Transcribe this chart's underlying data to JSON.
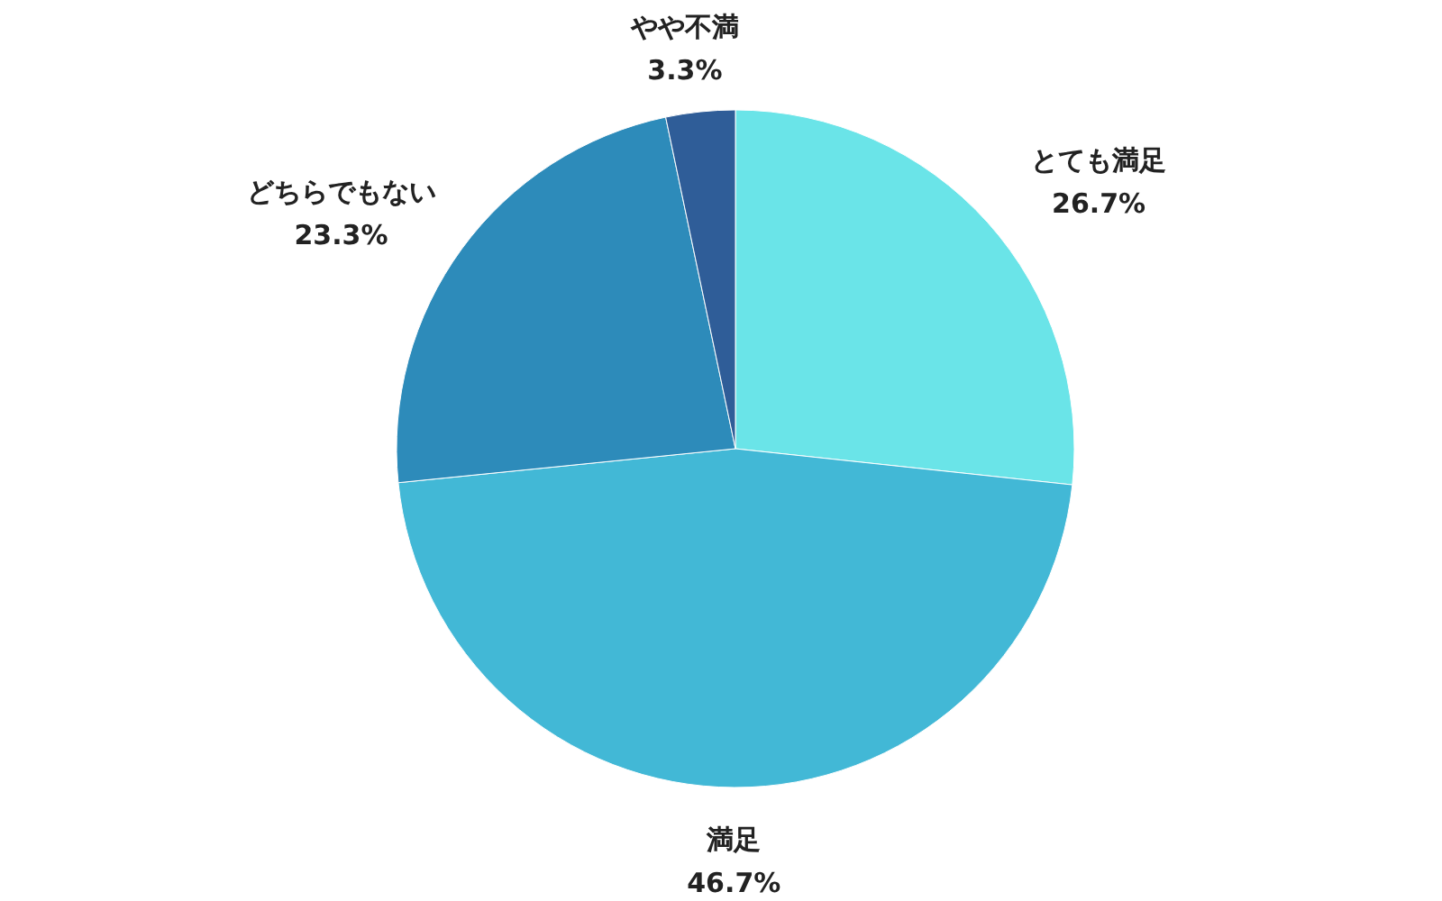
{
  "chart_data": {
    "type": "pie",
    "categories": [
      "とても満足",
      "満足",
      "どちらでもない",
      "やや不満"
    ],
    "values": [
      26.7,
      46.7,
      23.3,
      3.3
    ],
    "value_labels": [
      "26.7%",
      "46.7%",
      "23.3%",
      "3.3%"
    ],
    "colors": [
      "#6ae4e8",
      "#42b8d6",
      "#2d8bba",
      "#2f5d98"
    ]
  }
}
